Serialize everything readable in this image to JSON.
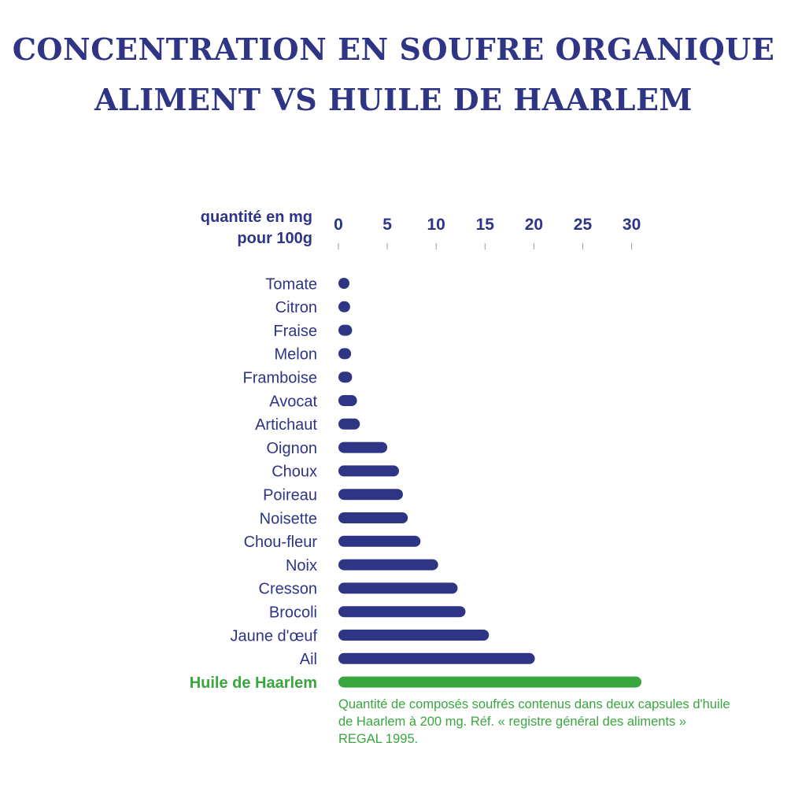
{
  "title_line1": "CONCENTRATION EN SOUFRE ORGANIQUE",
  "title_line2": "ALIMENT VS HUILE DE HAARLEM",
  "colors": {
    "title": "#2e3585",
    "bar": "#2e3585",
    "highlight": "#3aa63f",
    "tick": "#9a9a9a"
  },
  "chart_data": {
    "type": "bar",
    "orientation": "horizontal",
    "axis_label_line1": "quantité en mg",
    "axis_label_line2": "pour 100g",
    "xlim": [
      0,
      31
    ],
    "ticks": [
      0,
      5,
      10,
      15,
      20,
      25,
      30
    ],
    "tick_labels": [
      "0",
      "5",
      "10",
      "15",
      "20",
      "25",
      "30"
    ],
    "categories": [
      "Tomate",
      "Citron",
      "Fraise",
      "Melon",
      "Framboise",
      "Avocat",
      "Artichaut",
      "Oignon",
      "Choux",
      "Poireau",
      "Noisette",
      "Chou-fleur",
      "Noix",
      "Cresson",
      "Brocoli",
      "Jaune d'œuf",
      "Ail",
      "Huile de Haarlem"
    ],
    "values": [
      0.8,
      1.2,
      1.4,
      1.3,
      1.4,
      1.9,
      2.2,
      5.0,
      6.2,
      6.6,
      7.1,
      8.4,
      10.2,
      12.2,
      13.0,
      15.4,
      20.1,
      31.0
    ],
    "highlight_index": 17,
    "grid": false,
    "legend": "none",
    "note": "Quantité de composés soufrés contenus dans deux capsules d'huile de Haarlem à 200 mg. Réf. « registre général des aliments » REGAL 1995."
  }
}
